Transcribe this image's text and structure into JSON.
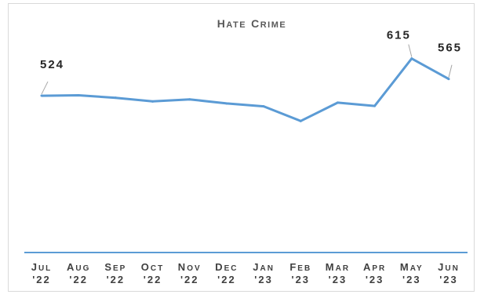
{
  "chart_data": {
    "type": "line",
    "title": "Hate Crime",
    "categories": [
      [
        "Jul",
        "'22"
      ],
      [
        "Aug",
        "'22"
      ],
      [
        "Sep",
        "'22"
      ],
      [
        "Oct",
        "'22"
      ],
      [
        "Nov",
        "'22"
      ],
      [
        "Dec",
        "'22"
      ],
      [
        "Jan",
        "'23"
      ],
      [
        "Feb",
        "'23"
      ],
      [
        "Mar",
        "'23"
      ],
      [
        "Apr",
        "'23"
      ],
      [
        "May",
        "'23"
      ],
      [
        "Jun",
        "'23"
      ]
    ],
    "series": [
      {
        "values": [
          524,
          525,
          519,
          510,
          515,
          505,
          498,
          462,
          507,
          499,
          615,
          565
        ],
        "color": "#5b9bd5"
      }
    ],
    "data_labels": [
      {
        "index": 0,
        "text": "524"
      },
      {
        "index": 10,
        "text": "615"
      },
      {
        "index": 11,
        "text": "565"
      }
    ],
    "ylim": [
      140,
      720
    ],
    "grid": false,
    "legend": "none",
    "axis_color": "#5b9bd5"
  }
}
